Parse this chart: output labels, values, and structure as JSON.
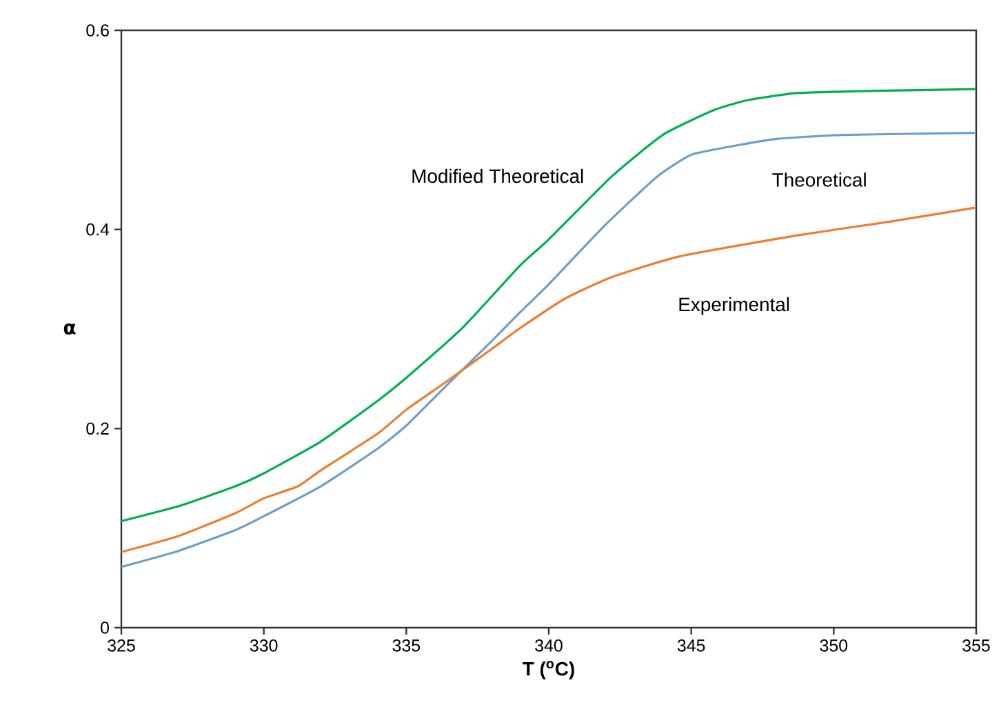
{
  "chart_data": {
    "type": "line",
    "xlabel": "T ($^{o}$C)",
    "ylabel": "α",
    "xlim": [
      325,
      355
    ],
    "ylim": [
      0,
      0.6
    ],
    "xticks": [
      325,
      330,
      335,
      340,
      345,
      350,
      355
    ],
    "yticks": [
      0,
      0.2,
      0.4,
      0.6
    ],
    "grid": false,
    "legend": false,
    "marker": "none",
    "line_style": "solid",
    "series": [
      {
        "name": "Modified  Theoretical",
        "color": "#00b050",
        "x": [
          325,
          327,
          329,
          330,
          332,
          334,
          335,
          337,
          339,
          340,
          342.2,
          344,
          345.8,
          347,
          348.7,
          351,
          355
        ],
        "values": [
          0.107,
          0.122,
          0.142,
          0.155,
          0.187,
          0.228,
          0.251,
          0.302,
          0.364,
          0.39,
          0.453,
          0.495,
          0.52,
          0.53,
          0.537,
          0.539,
          0.541
        ]
      },
      {
        "name": "Theoretical",
        "color": "#6d9eca",
        "x": [
          325,
          327,
          329,
          330,
          332,
          334,
          335,
          336.4,
          338,
          339,
          340,
          342,
          343.8,
          345,
          346.7,
          348,
          350.3,
          355
        ],
        "values": [
          0.061,
          0.077,
          0.098,
          0.112,
          0.142,
          0.18,
          0.203,
          0.243,
          0.288,
          0.317,
          0.345,
          0.405,
          0.453,
          0.475,
          0.485,
          0.491,
          0.495,
          0.497
        ]
      },
      {
        "name": "Experimental",
        "color": "#ed7d31",
        "x": [
          325,
          327,
          329,
          330,
          331.2,
          332,
          334,
          335,
          336.4,
          338,
          339,
          340.6,
          342.2,
          344.6,
          348.7,
          352,
          355
        ],
        "values": [
          0.076,
          0.092,
          0.115,
          0.13,
          0.142,
          0.158,
          0.195,
          0.219,
          0.247,
          0.28,
          0.301,
          0.331,
          0.352,
          0.373,
          0.394,
          0.408,
          0.422
        ]
      }
    ]
  }
}
